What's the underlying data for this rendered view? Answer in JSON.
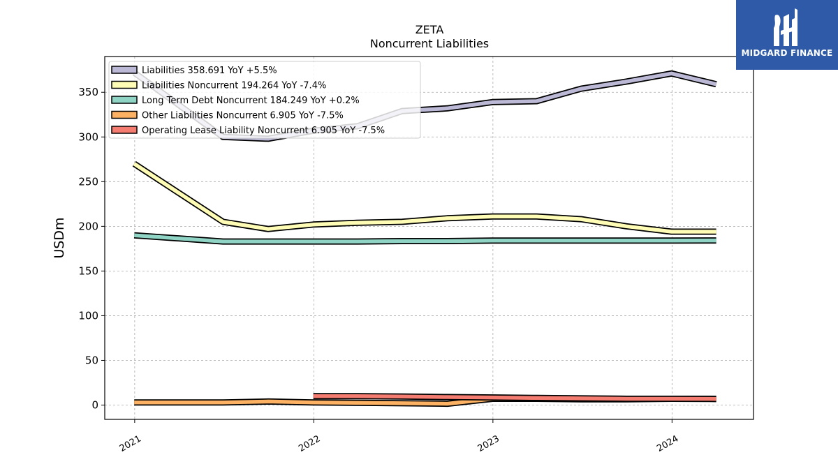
{
  "chart_data": {
    "type": "line",
    "title": "ZETA",
    "subtitle": "Noncurrent  Liabilities",
    "ylabel": "USDm",
    "xlabel": "",
    "ylim": [
      -16,
      390
    ],
    "xlim": [
      "2020-11-01",
      "2024-06-15"
    ],
    "yticks": [
      "0",
      "50",
      "100",
      "150",
      "200",
      "250",
      "300",
      "350"
    ],
    "xticks": [
      {
        "date": "2021-01-01",
        "label": "2021"
      },
      {
        "date": "2022-01-01",
        "label": "2022"
      },
      {
        "date": "2023-01-01",
        "label": "2023"
      },
      {
        "date": "2024-01-01",
        "label": "2024"
      }
    ],
    "grid": true,
    "legend_position": "top-left",
    "series": [
      {
        "key": "liabilities",
        "legend": "Liabilities  358.691 YoY +5.5%",
        "color": "#bcb9d6",
        "x": [
          "2020-12-31",
          "2021-06-30",
          "2021-09-30",
          "2021-12-31",
          "2022-03-31",
          "2022-06-30",
          "2022-09-30",
          "2022-12-31",
          "2023-03-31",
          "2023-06-30",
          "2023-09-30",
          "2023-12-31",
          "2024-03-31"
        ],
        "y": [
          372,
          300,
          298,
          307,
          312,
          329,
          332,
          339,
          340,
          354,
          362,
          371,
          359
        ]
      },
      {
        "key": "liabilities_noncurrent",
        "legend": "Liabilities Noncurrent  194.264 YoY -7.4%",
        "color": "#fffcb5",
        "x": [
          "2020-12-31",
          "2021-06-30",
          "2021-09-30",
          "2021-12-31",
          "2022-03-31",
          "2022-06-30",
          "2022-09-30",
          "2022-12-31",
          "2023-03-31",
          "2023-06-30",
          "2023-09-30",
          "2023-12-31",
          "2024-03-31"
        ],
        "y": [
          270,
          205,
          197,
          202,
          204,
          205,
          209,
          211,
          211,
          208,
          200,
          194,
          194
        ]
      },
      {
        "key": "long_term_debt_noncurrent",
        "legend": "Long Term Debt Noncurrent  184.249 YoY +0.2%",
        "color": "#8fd4c4",
        "x": [
          "2020-12-31",
          "2021-06-30",
          "2021-09-30",
          "2021-12-31",
          "2022-03-31",
          "2022-06-30",
          "2022-09-30",
          "2022-12-31",
          "2023-03-31",
          "2023-06-30",
          "2023-09-30",
          "2023-12-31",
          "2024-03-31"
        ],
        "y": [
          190,
          183,
          183,
          183,
          183,
          183.5,
          183.5,
          184,
          184,
          184,
          184,
          184,
          184.2
        ]
      },
      {
        "key": "other_liabilities_noncurrent",
        "legend": "Other Liabilities Noncurrent  6.905 YoY -7.5%",
        "color": "#fdb163",
        "x": [
          "2020-12-31",
          "2021-06-30",
          "2021-09-30",
          "2021-12-31",
          "2022-03-31",
          "2022-06-30",
          "2022-09-30",
          "2022-12-31",
          "2023-03-31",
          "2023-06-30",
          "2023-09-30",
          "2023-12-31",
          "2024-03-31"
        ],
        "y": [
          3,
          3,
          4,
          3,
          2.5,
          2,
          1.5,
          7,
          7,
          6.5,
          6.5,
          7,
          6.9
        ]
      },
      {
        "key": "operating_lease_liability_noncurrent",
        "legend": "Operating Lease Liability Noncurrent  6.905 YoY -7.5%",
        "color": "#f47c70",
        "x": [
          "2021-12-31",
          "2022-03-31",
          "2022-06-30",
          "2022-09-30",
          "2022-12-31",
          "2023-03-31",
          "2023-06-30",
          "2023-09-30",
          "2023-12-31",
          "2024-03-31"
        ],
        "y": [
          10,
          10,
          9.5,
          9,
          8.5,
          8,
          7.5,
          7,
          7,
          6.9
        ]
      }
    ]
  },
  "branding": {
    "name": "MIDGARD FINANCE",
    "icon": "midgard-logo-icon",
    "background": "#2e5aa8"
  }
}
